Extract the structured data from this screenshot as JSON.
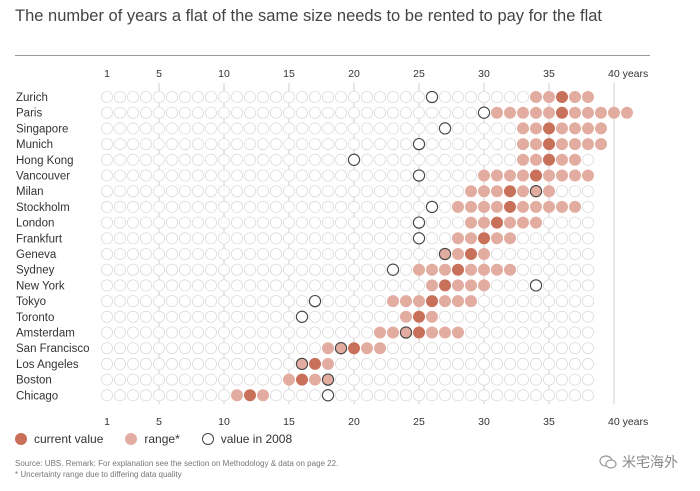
{
  "header": {
    "title": "The number of years a flat of the same size needs to be rented to pay for the flat"
  },
  "chart_data": {
    "type": "dot-range",
    "title": "The number of years a flat of the same size needs to be rented to pay for the flat",
    "x_ticks": [
      "1",
      "5",
      "10",
      "15",
      "20",
      "25",
      "30",
      "35",
      "40 years"
    ],
    "x_tick_values": [
      1,
      5,
      10,
      15,
      20,
      25,
      30,
      35,
      40
    ],
    "x_range": [
      1,
      41
    ],
    "grid": true,
    "colors": {
      "current": "#c9705a",
      "range": "#e2ada0",
      "empty": "#dcdcdc",
      "outline_2008": "#444444",
      "gridline": "#cfcfcf"
    },
    "rows": [
      {
        "city": "Zurich",
        "range": [
          34,
          38
        ],
        "current": 36,
        "y2008": 26
      },
      {
        "city": "Paris",
        "range": [
          31,
          41
        ],
        "current": 36,
        "y2008": 30
      },
      {
        "city": "Singapore",
        "range": [
          33,
          39
        ],
        "current": 35,
        "y2008": 27
      },
      {
        "city": "Munich",
        "range": [
          33,
          39
        ],
        "current": 35,
        "y2008": 25
      },
      {
        "city": "Hong Kong",
        "range": [
          33,
          37
        ],
        "current": 35,
        "y2008": 20
      },
      {
        "city": "Vancouver",
        "range": [
          30,
          38
        ],
        "current": 34,
        "y2008": 25
      },
      {
        "city": "Milan",
        "range": [
          29,
          35
        ],
        "current": 32,
        "y2008": 34
      },
      {
        "city": "Stockholm",
        "range": [
          28,
          37
        ],
        "current": 32,
        "y2008": 26
      },
      {
        "city": "London",
        "range": [
          29,
          34
        ],
        "current": 31,
        "y2008": 25
      },
      {
        "city": "Frankfurt",
        "range": [
          28,
          32
        ],
        "current": 30,
        "y2008": 25
      },
      {
        "city": "Geneva",
        "range": [
          27,
          30
        ],
        "current": 29,
        "y2008": 27
      },
      {
        "city": "Sydney",
        "range": [
          25,
          32
        ],
        "current": 28,
        "y2008": 23
      },
      {
        "city": "New York",
        "range": [
          26,
          30
        ],
        "current": 27,
        "y2008": 34
      },
      {
        "city": "Tokyo",
        "range": [
          23,
          29
        ],
        "current": 26,
        "y2008": 17
      },
      {
        "city": "Toronto",
        "range": [
          24,
          26
        ],
        "current": 25,
        "y2008": 16
      },
      {
        "city": "Amsterdam",
        "range": [
          22,
          28
        ],
        "current": 25,
        "y2008": 24
      },
      {
        "city": "San Francisco",
        "range": [
          18,
          22
        ],
        "current": 20,
        "y2008": 19
      },
      {
        "city": "Los Angeles",
        "range": [
          16,
          18
        ],
        "current": 17,
        "y2008": 16
      },
      {
        "city": "Boston",
        "range": [
          15,
          18
        ],
        "current": 16,
        "y2008": 18
      },
      {
        "city": "Chicago",
        "range": [
          11,
          13
        ],
        "current": 12,
        "y2008": 18
      }
    ]
  },
  "legend": {
    "current": "current value",
    "range": "range*",
    "y2008": "value in 2008"
  },
  "footer": {
    "source": "Source: UBS. Remark: For explanation see the section on Methodology & data on page 22.",
    "note": "* Uncertainty range due to differing data quality"
  },
  "watermark": {
    "text": "米宅海外",
    "icon": "wechat-icon"
  }
}
